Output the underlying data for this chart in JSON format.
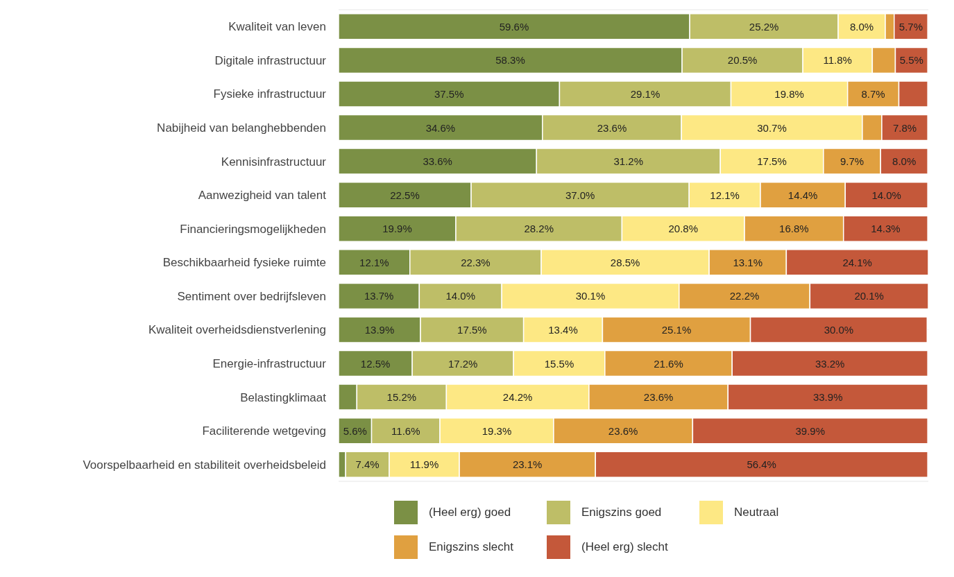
{
  "chart_data": {
    "type": "bar",
    "orientation": "horizontal",
    "stacked": true,
    "grid": "y",
    "legend": "bottom",
    "categories": [
      "Kwaliteit van leven",
      "Digitale infrastructuur",
      "Fysieke infrastructuur",
      "Nabijheid van belanghebbenden",
      "Kennisinfrastructuur",
      "Aanwezigheid van talent",
      "Financieringsmogelijkheden",
      "Beschikbaarheid fysieke ruimte",
      "Sentiment over bedrijfsleven",
      "Kwaliteit overheidsdienstverlening",
      "Energie-infrastructuur",
      "Belastingklimaat",
      "Faciliterende wetgeving",
      "Voorspelbaarheid en stabiliteit overheidsbeleid"
    ],
    "series": [
      {
        "name": "(Heel erg) goed",
        "color": "#7b9045",
        "values": [
          59.6,
          58.3,
          37.5,
          34.6,
          33.6,
          22.5,
          19.9,
          12.1,
          13.7,
          13.9,
          12.5,
          3.1,
          5.6,
          1.2
        ],
        "value_labels": [
          "59.6%",
          "58.3%",
          "37.5%",
          "34.6%",
          "33.6%",
          "22.5%",
          "19.9%",
          "12.1%",
          "13.7%",
          "13.9%",
          "12.5%",
          null,
          "5.6%",
          null
        ]
      },
      {
        "name": "Enigszins goed",
        "color": "#bebe67",
        "values": [
          25.2,
          20.5,
          29.1,
          23.6,
          31.2,
          37.0,
          28.2,
          22.3,
          14.0,
          17.5,
          17.2,
          15.2,
          11.6,
          7.4
        ],
        "value_labels": [
          "25.2%",
          "20.5%",
          "29.1%",
          "23.6%",
          "31.2%",
          "37.0%",
          "28.2%",
          "22.3%",
          "14.0%",
          "17.5%",
          "17.2%",
          "15.2%",
          "11.6%",
          "7.4%"
        ]
      },
      {
        "name": "Neutraal",
        "color": "#fde884",
        "values": [
          8.0,
          11.8,
          19.8,
          30.7,
          17.5,
          12.1,
          20.8,
          28.5,
          30.1,
          13.4,
          15.5,
          24.2,
          19.3,
          11.9
        ],
        "value_labels": [
          "8.0%",
          "11.8%",
          "19.8%",
          "30.7%",
          "17.5%",
          "12.1%",
          "20.8%",
          "28.5%",
          "30.1%",
          "13.4%",
          "15.5%",
          "24.2%",
          "19.3%",
          "11.9%"
        ]
      },
      {
        "name": "Enigszins slecht",
        "color": "#e0a040",
        "values": [
          1.5,
          3.9,
          8.7,
          3.3,
          9.7,
          14.4,
          16.8,
          13.1,
          22.2,
          25.1,
          21.6,
          23.6,
          23.6,
          23.1
        ],
        "value_labels": [
          null,
          null,
          "8.7%",
          null,
          "9.7%",
          "14.4%",
          "16.8%",
          "13.1%",
          "22.2%",
          "25.1%",
          "21.6%",
          "23.6%",
          "23.6%",
          "23.1%"
        ]
      },
      {
        "name": "(Heel erg) slecht",
        "color": "#c4583a",
        "values": [
          5.7,
          5.5,
          4.9,
          7.8,
          8.0,
          14.0,
          14.3,
          24.1,
          20.1,
          30.0,
          33.2,
          33.9,
          39.9,
          56.4
        ],
        "value_labels": [
          "5.7%",
          "5.5%",
          null,
          "7.8%",
          "8.0%",
          "14.0%",
          "14.3%",
          "24.1%",
          "20.1%",
          "30.0%",
          "33.2%",
          "33.9%",
          "39.9%",
          "56.4%"
        ]
      }
    ]
  }
}
